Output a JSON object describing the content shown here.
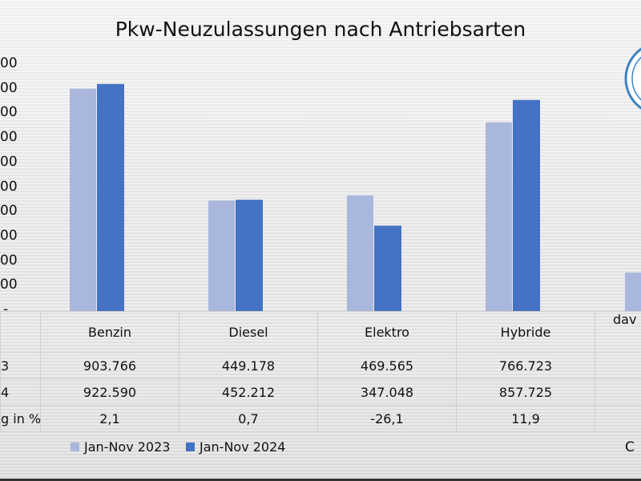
{
  "chart_data": {
    "type": "bar",
    "title": "Pkw-Neuzulassungen nach Antriebsarten",
    "categories": [
      "Benzin",
      "Diesel",
      "Elektro",
      "Hybride",
      "dav"
    ],
    "series": [
      {
        "name": "Jan-Nov 2023",
        "color": "#a9b7dc",
        "values": [
          903766,
          449178,
          469565,
          766723,
          156000
        ]
      },
      {
        "name": "Jan-Nov 2024",
        "color": "#4472c4",
        "values": [
          922590,
          452212,
          347048,
          857725,
          null
        ]
      }
    ],
    "ylim": [
      0,
      1000000
    ],
    "ytick_labels": [
      "-",
      "00",
      "00",
      "00",
      "00",
      "00",
      "00",
      "00",
      "00",
      "00",
      "00"
    ],
    "table": {
      "row_labels": [
        "3",
        "4",
        "g in %"
      ],
      "rows": [
        [
          "903.766",
          "449.178",
          "469.565",
          "766.723"
        ],
        [
          "922.590",
          "452.212",
          "347.048",
          "857.725"
        ],
        [
          "2,1",
          "0,7",
          "-26,1",
          "11,9"
        ]
      ]
    },
    "legend_placement": "bottom-left",
    "footer_fragment": "C"
  }
}
